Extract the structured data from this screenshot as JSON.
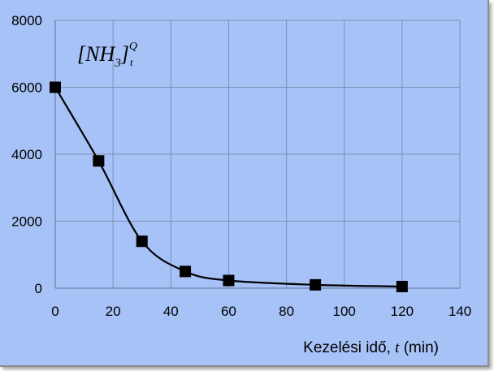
{
  "chart_data": {
    "type": "line",
    "annotation": {
      "base": "[NH",
      "sub3": "3",
      "bracket": "]",
      "sup": "Q",
      "sub": "t"
    },
    "xlabel": {
      "prefix": "Kezelési idő, ",
      "var": "t",
      "suffix": " (min)"
    },
    "ylabel": "",
    "xlim": [
      0,
      140
    ],
    "ylim": [
      0,
      8000
    ],
    "x_ticks": [
      0,
      20,
      40,
      60,
      80,
      100,
      120,
      140
    ],
    "y_ticks": [
      0,
      2000,
      4000,
      6000,
      8000
    ],
    "grid": true,
    "series": [
      {
        "marker": "square",
        "color": "#000000",
        "x": [
          0,
          15,
          30,
          45,
          60,
          90,
          120
        ],
        "y": [
          6000,
          3800,
          1400,
          500,
          230,
          100,
          50
        ]
      }
    ],
    "curve_color": "#000000",
    "background": "#a6c2f6",
    "grid_color": "#7f8fb4"
  }
}
